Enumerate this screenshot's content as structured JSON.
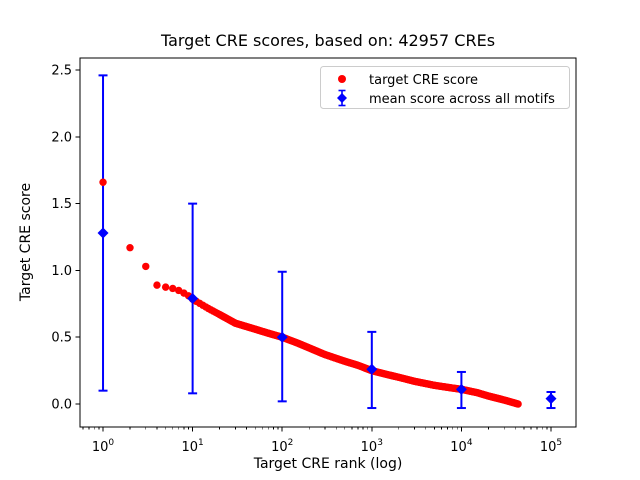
{
  "chart_data": {
    "type": "scatter",
    "title": "Target CRE scores, based on: 42957 CREs",
    "xlabel": "Target CRE rank (log)",
    "ylabel": "Target CRE score",
    "x_scale": "log",
    "xlim_log10": [
      -0.257,
      5.279
    ],
    "ylim": [
      -0.172,
      2.59
    ],
    "x_tick_exponents": [
      "0",
      "1",
      "2",
      "3",
      "4",
      "5"
    ],
    "y_ticks": [
      0.0,
      0.5,
      1.0,
      1.5,
      2.0,
      2.5
    ],
    "n_cres": 42957,
    "grid": false,
    "legend_position": "upper right",
    "series": [
      {
        "name": "target CRE score",
        "type": "scatter",
        "marker": "circle",
        "color": "#ff0000",
        "n_points": 42957,
        "rank_range": [
          1,
          42957
        ],
        "anchor_points": [
          [
            1,
            1.66
          ],
          [
            2,
            1.17
          ],
          [
            3,
            1.03
          ],
          [
            4,
            0.89
          ],
          [
            5,
            0.875
          ],
          [
            6,
            0.865
          ],
          [
            7,
            0.85
          ],
          [
            8,
            0.83
          ],
          [
            9,
            0.81
          ],
          [
            10,
            0.785
          ],
          [
            15,
            0.715
          ],
          [
            20,
            0.67
          ],
          [
            30,
            0.605
          ],
          [
            50,
            0.56
          ],
          [
            70,
            0.53
          ],
          [
            100,
            0.5
          ],
          [
            150,
            0.455
          ],
          [
            200,
            0.42
          ],
          [
            300,
            0.37
          ],
          [
            500,
            0.32
          ],
          [
            700,
            0.29
          ],
          [
            1000,
            0.25
          ],
          [
            1500,
            0.22
          ],
          [
            2000,
            0.2
          ],
          [
            3000,
            0.17
          ],
          [
            5000,
            0.14
          ],
          [
            7000,
            0.125
          ],
          [
            10000,
            0.11
          ],
          [
            15000,
            0.085
          ],
          [
            20000,
            0.06
          ],
          [
            30000,
            0.03
          ],
          [
            42957,
            0.0
          ]
        ]
      },
      {
        "name": "mean score across all motifs",
        "type": "errorbar",
        "marker": "diamond",
        "color": "#0000ff",
        "points": [
          {
            "rank": 1,
            "mean": 1.28,
            "lo": 0.1,
            "hi": 2.46
          },
          {
            "rank": 10,
            "mean": 0.79,
            "lo": 0.08,
            "hi": 1.5
          },
          {
            "rank": 100,
            "mean": 0.5,
            "lo": 0.02,
            "hi": 0.99
          },
          {
            "rank": 1000,
            "mean": 0.26,
            "lo": -0.03,
            "hi": 0.54
          },
          {
            "rank": 10000,
            "mean": 0.11,
            "lo": -0.03,
            "hi": 0.24
          },
          {
            "rank": 100000,
            "mean": 0.04,
            "lo": -0.03,
            "hi": 0.09
          }
        ]
      }
    ],
    "colors": {
      "target_series": "#ff0000",
      "mean_series": "#0000ff",
      "axis": "#000000",
      "legend_border": "#cccccc",
      "background": "#ffffff"
    }
  }
}
